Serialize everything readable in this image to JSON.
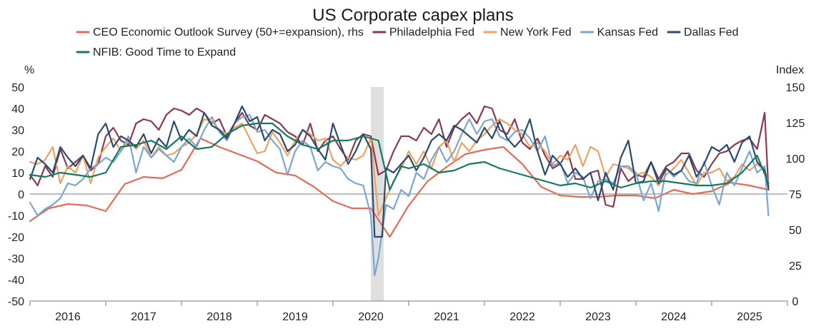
{
  "chart_data": {
    "type": "line",
    "title": "US Corporate capex plans",
    "ylabel_left": "%",
    "ylabel_right": "Index",
    "ylim_left": [
      -50,
      50
    ],
    "ylim_right": [
      0,
      150
    ],
    "yticks_left": [
      "50",
      "40",
      "30",
      "20",
      "10",
      "0",
      "-10",
      "-20",
      "-30",
      "-40",
      "-50"
    ],
    "yticks_right": [
      "150",
      "125",
      "100",
      "75",
      "50",
      "25",
      "0"
    ],
    "xticks": [
      "2016",
      "2017",
      "2018",
      "2019",
      "2020",
      "2021",
      "2022",
      "2023",
      "2024",
      "2025"
    ],
    "xrange": [
      2015.5,
      2025.5
    ],
    "grid": false,
    "legend_position": "top",
    "recession_band": [
      2020.0,
      2020.17
    ],
    "series": [
      {
        "name": "CEO Economic Outlook Survey (50+=expansion), rhs",
        "axis": "right",
        "color": "#e56a57",
        "x": [
          2015.5,
          2015.75,
          2016.0,
          2016.25,
          2016.5,
          2016.75,
          2017.0,
          2017.25,
          2017.5,
          2017.75,
          2018.0,
          2018.25,
          2018.5,
          2018.75,
          2019.0,
          2019.25,
          2019.5,
          2019.75,
          2020.0,
          2020.25,
          2020.5,
          2020.75,
          2021.0,
          2021.25,
          2021.5,
          2021.75,
          2022.0,
          2022.25,
          2022.5,
          2022.75,
          2023.0,
          2023.25,
          2023.5,
          2023.75,
          2024.0,
          2024.25,
          2024.5,
          2024.75,
          2025.0,
          2025.25
        ],
        "y": [
          56,
          65,
          68,
          67,
          63,
          82,
          87,
          86,
          92,
          114,
          108,
          103,
          98,
          90,
          88,
          80,
          70,
          65,
          65,
          45,
          67,
          84,
          94,
          103,
          106,
          108,
          96,
          80,
          74,
          73,
          73,
          74,
          74,
          72,
          78,
          75,
          77,
          83,
          81,
          78
        ]
      },
      {
        "name": "Philadelphia Fed",
        "axis": "left",
        "color": "#8b3a4d",
        "x": [
          2015.5,
          2015.6,
          2015.7,
          2015.8,
          2015.9,
          2016.0,
          2016.1,
          2016.2,
          2016.3,
          2016.4,
          2016.5,
          2016.6,
          2016.7,
          2016.8,
          2016.9,
          2017.0,
          2017.1,
          2017.2,
          2017.3,
          2017.4,
          2017.5,
          2017.6,
          2017.7,
          2017.8,
          2017.9,
          2018.0,
          2018.1,
          2018.2,
          2018.3,
          2018.4,
          2018.5,
          2018.6,
          2018.7,
          2018.8,
          2018.9,
          2019.0,
          2019.1,
          2019.2,
          2019.3,
          2019.4,
          2019.5,
          2019.6,
          2019.7,
          2019.8,
          2019.9,
          2020.0,
          2020.1,
          2020.2,
          2020.3,
          2020.4,
          2020.5,
          2020.6,
          2020.7,
          2020.8,
          2020.9,
          2021.0,
          2021.1,
          2021.2,
          2021.3,
          2021.4,
          2021.5,
          2021.6,
          2021.7,
          2021.8,
          2021.9,
          2022.0,
          2022.1,
          2022.2,
          2022.3,
          2022.4,
          2022.5,
          2022.6,
          2022.7,
          2022.8,
          2022.9,
          2023.0,
          2023.1,
          2023.2,
          2023.3,
          2023.4,
          2023.5,
          2023.6,
          2023.7,
          2023.8,
          2023.9,
          2024.0,
          2024.1,
          2024.2,
          2024.3,
          2024.4,
          2024.5,
          2024.6,
          2024.7,
          2024.8,
          2024.9,
          2025.0,
          2025.1,
          2025.2,
          2025.25
        ],
        "y": [
          9,
          4,
          13,
          8,
          21,
          12,
          15,
          18,
          11,
          14,
          27,
          31,
          25,
          23,
          33,
          35,
          34,
          30,
          37,
          40,
          39,
          37,
          40,
          38,
          33,
          35,
          27,
          33,
          38,
          32,
          30,
          37,
          35,
          33,
          29,
          27,
          23,
          33,
          20,
          25,
          27,
          21,
          16,
          25,
          28,
          27,
          9,
          11,
          20,
          27,
          27,
          25,
          31,
          28,
          35,
          22,
          31,
          35,
          38,
          33,
          41,
          40,
          30,
          28,
          35,
          24,
          21,
          26,
          18,
          12,
          14,
          20,
          7,
          7,
          10,
          11,
          -5,
          -6,
          12,
          6,
          9,
          8,
          15,
          7,
          13,
          15,
          19,
          19,
          11,
          8,
          14,
          19,
          20,
          23,
          25,
          26,
          21,
          38,
          2
        ]
      },
      {
        "name": "New York Fed",
        "axis": "left",
        "color": "#f0a060",
        "x": [
          2015.5,
          2015.6,
          2015.7,
          2015.8,
          2015.9,
          2016.0,
          2016.1,
          2016.2,
          2016.3,
          2016.4,
          2016.5,
          2016.6,
          2016.7,
          2016.8,
          2016.9,
          2017.0,
          2017.1,
          2017.2,
          2017.3,
          2017.4,
          2017.5,
          2017.6,
          2017.7,
          2017.8,
          2017.9,
          2018.0,
          2018.1,
          2018.2,
          2018.3,
          2018.4,
          2018.5,
          2018.6,
          2018.7,
          2018.8,
          2018.9,
          2019.0,
          2019.1,
          2019.2,
          2019.3,
          2019.4,
          2019.5,
          2019.6,
          2019.7,
          2019.8,
          2019.9,
          2020.0,
          2020.1,
          2020.2,
          2020.3,
          2020.4,
          2020.5,
          2020.6,
          2020.7,
          2020.8,
          2020.9,
          2021.0,
          2021.1,
          2021.2,
          2021.3,
          2021.4,
          2021.5,
          2021.6,
          2021.7,
          2021.8,
          2021.9,
          2022.0,
          2022.1,
          2022.2,
          2022.3,
          2022.4,
          2022.5,
          2022.6,
          2022.7,
          2022.8,
          2022.9,
          2023.0,
          2023.1,
          2023.2,
          2023.3,
          2023.4,
          2023.5,
          2023.6,
          2023.7,
          2023.8,
          2023.9,
          2024.0,
          2024.1,
          2024.2,
          2024.3,
          2024.4,
          2024.5,
          2024.6,
          2024.7,
          2024.8,
          2024.9,
          2025.0,
          2025.1,
          2025.2,
          2025.25
        ],
        "y": [
          15,
          14,
          16,
          22,
          5,
          13,
          10,
          18,
          5,
          17,
          22,
          26,
          20,
          25,
          21,
          25,
          17,
          22,
          18,
          19,
          22,
          24,
          28,
          35,
          34,
          30,
          28,
          31,
          33,
          26,
          19,
          20,
          29,
          24,
          18,
          25,
          30,
          28,
          25,
          26,
          16,
          13,
          17,
          16,
          18,
          26,
          -10,
          -2,
          6,
          12,
          20,
          14,
          20,
          12,
          22,
          25,
          15,
          24,
          20,
          25,
          28,
          32,
          35,
          33,
          30,
          28,
          22,
          24,
          20,
          14,
          18,
          16,
          23,
          13,
          22,
          20,
          8,
          14,
          13,
          12,
          9,
          10,
          8,
          4,
          9,
          12,
          16,
          10,
          4,
          10,
          10,
          12,
          6,
          8,
          14,
          11,
          14,
          11,
          5
        ]
      },
      {
        "name": "Kansas Fed",
        "axis": "left",
        "color": "#7aa6d2",
        "x": [
          2015.5,
          2015.6,
          2015.7,
          2015.8,
          2015.9,
          2016.0,
          2016.1,
          2016.2,
          2016.3,
          2016.4,
          2016.5,
          2016.6,
          2016.7,
          2016.8,
          2016.9,
          2017.0,
          2017.1,
          2017.2,
          2017.3,
          2017.4,
          2017.5,
          2017.6,
          2017.7,
          2017.8,
          2017.9,
          2018.0,
          2018.1,
          2018.2,
          2018.3,
          2018.4,
          2018.5,
          2018.6,
          2018.7,
          2018.8,
          2018.9,
          2019.0,
          2019.1,
          2019.2,
          2019.3,
          2019.4,
          2019.5,
          2019.6,
          2019.7,
          2019.8,
          2019.9,
          2020.0,
          2020.05,
          2020.1,
          2020.2,
          2020.3,
          2020.4,
          2020.5,
          2020.6,
          2020.7,
          2020.8,
          2020.9,
          2021.0,
          2021.1,
          2021.2,
          2021.3,
          2021.4,
          2021.5,
          2021.6,
          2021.7,
          2021.8,
          2021.9,
          2022.0,
          2022.1,
          2022.2,
          2022.3,
          2022.4,
          2022.5,
          2022.6,
          2022.7,
          2022.8,
          2022.9,
          2023.0,
          2023.1,
          2023.2,
          2023.3,
          2023.4,
          2023.5,
          2023.6,
          2023.7,
          2023.8,
          2023.9,
          2024.0,
          2024.1,
          2024.2,
          2024.3,
          2024.4,
          2024.5,
          2024.6,
          2024.7,
          2024.8,
          2024.9,
          2025.0,
          2025.1,
          2025.2,
          2025.25
        ],
        "y": [
          -4,
          -10,
          -7,
          -5,
          -2,
          5,
          4,
          7,
          12,
          14,
          17,
          15,
          20,
          27,
          10,
          22,
          17,
          21,
          18,
          15,
          22,
          26,
          22,
          30,
          36,
          29,
          25,
          33,
          36,
          37,
          29,
          30,
          25,
          21,
          9,
          20,
          25,
          22,
          11,
          15,
          13,
          12,
          7,
          5,
          4,
          -10,
          -38,
          -30,
          -5,
          -7,
          2,
          -1,
          10,
          7,
          16,
          22,
          15,
          20,
          28,
          35,
          28,
          34,
          35,
          27,
          25,
          29,
          30,
          26,
          20,
          27,
          13,
          15,
          5,
          10,
          8,
          -2,
          6,
          7,
          5,
          13,
          13,
          10,
          -3,
          5,
          -8,
          12,
          8,
          11,
          6,
          5,
          15,
          4,
          -5,
          10,
          4,
          12,
          20,
          10,
          13,
          -10
        ]
      },
      {
        "name": "Dallas Fed",
        "axis": "left",
        "color": "#2c4a6e",
        "x": [
          2015.5,
          2015.6,
          2015.7,
          2015.8,
          2015.9,
          2016.0,
          2016.1,
          2016.2,
          2016.3,
          2016.4,
          2016.5,
          2016.6,
          2016.7,
          2016.8,
          2016.9,
          2017.0,
          2017.1,
          2017.2,
          2017.3,
          2017.4,
          2017.5,
          2017.6,
          2017.7,
          2017.8,
          2017.9,
          2018.0,
          2018.1,
          2018.2,
          2018.3,
          2018.4,
          2018.5,
          2018.6,
          2018.7,
          2018.8,
          2018.9,
          2019.0,
          2019.1,
          2019.2,
          2019.3,
          2019.4,
          2019.5,
          2019.6,
          2019.7,
          2019.8,
          2019.9,
          2020.0,
          2020.05,
          2020.15,
          2020.2,
          2020.3,
          2020.4,
          2020.5,
          2020.6,
          2020.7,
          2020.8,
          2020.9,
          2021.0,
          2021.1,
          2021.2,
          2021.3,
          2021.4,
          2021.5,
          2021.6,
          2021.7,
          2021.8,
          2021.9,
          2022.0,
          2022.1,
          2022.2,
          2022.3,
          2022.4,
          2022.5,
          2022.6,
          2022.7,
          2022.8,
          2022.9,
          2023.0,
          2023.1,
          2023.2,
          2023.3,
          2023.4,
          2023.5,
          2023.6,
          2023.7,
          2023.8,
          2023.9,
          2024.0,
          2024.1,
          2024.2,
          2024.3,
          2024.4,
          2024.5,
          2024.6,
          2024.7,
          2024.8,
          2024.9,
          2025.0,
          2025.1,
          2025.2,
          2025.25
        ],
        "y": [
          7,
          17,
          14,
          10,
          22,
          17,
          13,
          18,
          12,
          28,
          33,
          22,
          27,
          25,
          22,
          28,
          19,
          26,
          22,
          34,
          25,
          30,
          27,
          38,
          32,
          30,
          26,
          33,
          41,
          34,
          36,
          25,
          30,
          28,
          20,
          23,
          30,
          27,
          21,
          16,
          33,
          23,
          14,
          20,
          28,
          21,
          -20,
          -20,
          12,
          10,
          14,
          18,
          11,
          17,
          25,
          28,
          25,
          32,
          30,
          27,
          24,
          31,
          26,
          34,
          26,
          22,
          26,
          35,
          20,
          9,
          18,
          14,
          8,
          12,
          7,
          10,
          -3,
          10,
          2,
          17,
          25,
          5,
          6,
          15,
          5,
          12,
          9,
          11,
          18,
          8,
          14,
          22,
          20,
          23,
          15,
          24,
          27,
          15,
          11,
          3
        ]
      },
      {
        "name": "NFIB: Good Time to Expand",
        "axis": "left",
        "color": "#137a5e",
        "x": [
          2015.5,
          2015.7,
          2015.9,
          2016.1,
          2016.3,
          2016.5,
          2016.7,
          2016.9,
          2017.1,
          2017.3,
          2017.5,
          2017.7,
          2017.9,
          2018.1,
          2018.3,
          2018.5,
          2018.7,
          2018.9,
          2019.1,
          2019.3,
          2019.5,
          2019.7,
          2019.9,
          2020.0,
          2020.1,
          2020.25,
          2020.4,
          2020.5,
          2020.7,
          2020.9,
          2021.1,
          2021.3,
          2021.5,
          2021.7,
          2021.9,
          2022.1,
          2022.3,
          2022.5,
          2022.7,
          2022.9,
          2023.1,
          2023.3,
          2023.5,
          2023.7,
          2023.9,
          2024.1,
          2024.3,
          2024.5,
          2024.7,
          2024.9,
          2025.1,
          2025.25
        ],
        "y": [
          9,
          8,
          10,
          9,
          8,
          10,
          22,
          23,
          25,
          21,
          27,
          21,
          22,
          28,
          32,
          33,
          33,
          27,
          23,
          21,
          25,
          25,
          27,
          26,
          25,
          2,
          13,
          12,
          14,
          10,
          11,
          14,
          15,
          12,
          10,
          8,
          6,
          4,
          5,
          3,
          6,
          3,
          5,
          6,
          6,
          5,
          4,
          4,
          5,
          10,
          18,
          5
        ]
      }
    ]
  }
}
